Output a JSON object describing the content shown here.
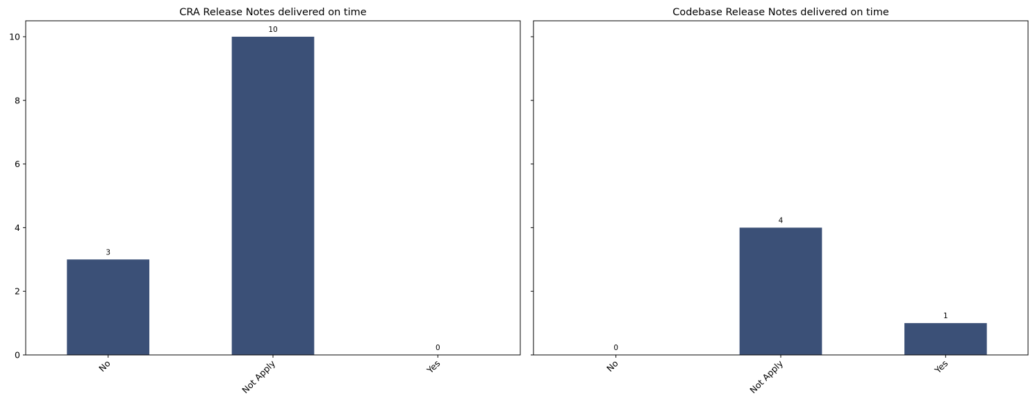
{
  "chart_data": [
    {
      "type": "bar",
      "title": "CRA Release Notes delivered on time",
      "categories": [
        "No",
        "Not Apply",
        "Yes"
      ],
      "values": [
        3,
        10,
        0
      ],
      "data_labels": [
        "3",
        "10",
        "0"
      ],
      "ylim": [
        0,
        10.5
      ],
      "yticks": [
        "0",
        "2",
        "4",
        "6",
        "8",
        "10"
      ],
      "ytick_labels_visible": true,
      "xtick_rotation": 45,
      "bar_color": "#3b5077",
      "grid": false
    },
    {
      "type": "bar",
      "title": "Codebase Release Notes delivered on time",
      "categories": [
        "No",
        "Not Apply",
        "Yes"
      ],
      "values": [
        0,
        4,
        1
      ],
      "data_labels": [
        "0",
        "4",
        "1"
      ],
      "ylim": [
        0,
        10.5
      ],
      "yticks": [
        "0",
        "2",
        "4",
        "6",
        "8",
        "10"
      ],
      "ytick_labels_visible": false,
      "xtick_rotation": 45,
      "bar_color": "#3b5077",
      "grid": false
    }
  ]
}
